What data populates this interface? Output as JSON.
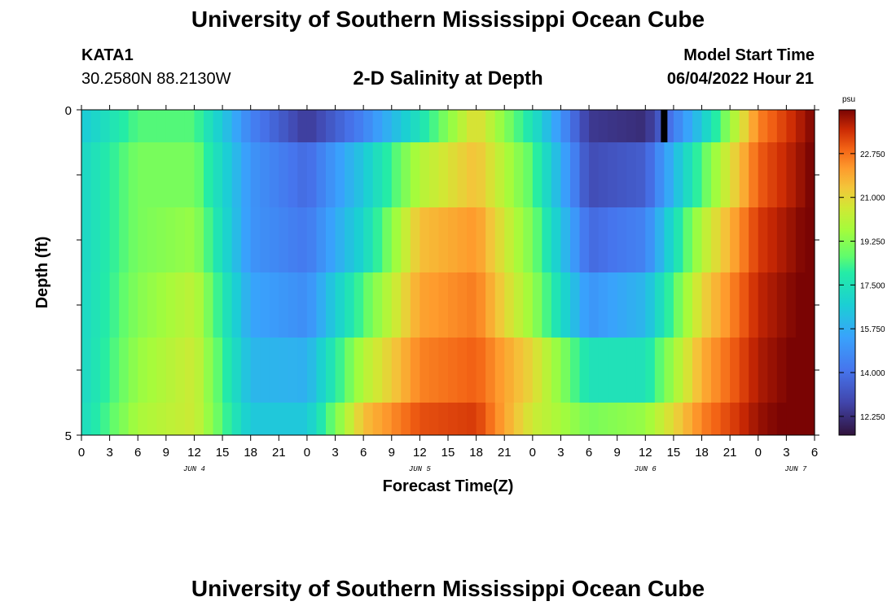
{
  "header": {
    "title": "University of Southern Mississippi Ocean Cube",
    "station": "KATA1",
    "coords": "30.2580N  88.2130W",
    "subtitle": "2-D Salinity at Depth",
    "start_label": "Model Start Time",
    "start_value": "06/04/2022 Hour 21"
  },
  "footer": {
    "title": "University of Southern Mississippi Ocean Cube"
  },
  "chart_data": {
    "type": "heatmap",
    "title": "2-D Salinity at Depth",
    "xlabel": "Forecast Time(Z)",
    "ylabel": "Depth (ft)",
    "x_start_hour": 0,
    "x_end_hour": 78,
    "x_tick_step_hours": 3,
    "x_ticks": [
      "0",
      "3",
      "6",
      "9",
      "12",
      "15",
      "18",
      "21",
      "0",
      "3",
      "6",
      "9",
      "12",
      "15",
      "18",
      "21",
      "0",
      "3",
      "6",
      "9",
      "12",
      "15",
      "18",
      "21",
      "0",
      "3",
      "6"
    ],
    "date_labels": [
      {
        "label": "JUN 4",
        "hour": 12
      },
      {
        "label": "JUN 5",
        "hour": 36
      },
      {
        "label": "JUN 6",
        "hour": 60
      },
      {
        "label": "JUN 7",
        "hour": 76
      }
    ],
    "y_tick_labels": [
      "0",
      "5"
    ],
    "y_range_ft": [
      0,
      5
    ],
    "depth_bands": 5,
    "colorbar": {
      "unit": "psu",
      "min": 11.5,
      "max": 24.5,
      "ticks": [
        12.25,
        14.0,
        15.75,
        17.5,
        19.25,
        21.0,
        22.75
      ],
      "tick_labels": [
        "12.250",
        "14.000",
        "15.750",
        "17.500",
        "19.250",
        "21.000",
        "22.750"
      ]
    },
    "hours": [
      0,
      6,
      12,
      18,
      24,
      30,
      36,
      42,
      48,
      54,
      60,
      66,
      72,
      78
    ],
    "salinity": [
      [
        16.5,
        18.5,
        18.5,
        14.5,
        12.5,
        14.5,
        17.5,
        21.0,
        17.5,
        12.5,
        12.2,
        16.5,
        22.5,
        24.5
      ],
      [
        17.0,
        19.0,
        19.0,
        15.0,
        13.8,
        16.5,
        20.0,
        21.5,
        18.5,
        13.0,
        13.5,
        18.5,
        23.0,
        24.6
      ],
      [
        17.0,
        19.0,
        19.5,
        15.0,
        14.2,
        17.0,
        21.5,
        22.2,
        19.0,
        13.8,
        14.5,
        20.0,
        23.5,
        24.7
      ],
      [
        17.0,
        19.2,
        20.2,
        15.5,
        14.8,
        18.5,
        22.0,
        22.6,
        19.5,
        15.0,
        16.0,
        21.0,
        23.8,
        24.8
      ],
      [
        17.0,
        19.5,
        20.5,
        16.0,
        15.8,
        20.0,
        22.5,
        23.0,
        21.0,
        17.5,
        17.5,
        21.8,
        24.0,
        24.9
      ],
      [
        17.2,
        19.8,
        20.5,
        16.5,
        16.5,
        21.5,
        23.2,
        23.5,
        20.5,
        19.0,
        19.5,
        22.5,
        24.2,
        25.0
      ]
    ],
    "missing_cells": [
      {
        "hour": 62,
        "band": 0
      }
    ]
  }
}
